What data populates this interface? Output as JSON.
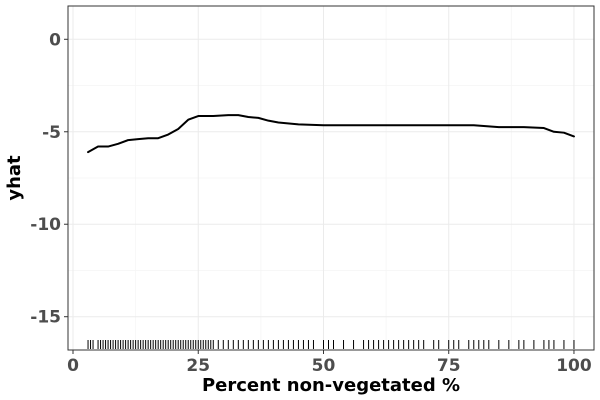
{
  "chart_data": {
    "type": "line",
    "title": "",
    "xlabel": "Percent non-vegetated %",
    "ylabel": "yhat",
    "xlim": [
      -1,
      104
    ],
    "ylim": [
      -16.8,
      1.8
    ],
    "x_ticks": [
      0,
      25,
      50,
      75,
      100
    ],
    "y_ticks": [
      0,
      -5,
      -10,
      -15
    ],
    "grid": true,
    "series": [
      {
        "x": [
          3,
          5,
          7,
          9,
          11,
          13,
          15,
          17,
          19,
          21,
          23,
          25,
          28,
          31,
          33,
          35,
          37,
          39,
          41,
          45,
          50,
          55,
          60,
          65,
          70,
          75,
          80,
          85,
          90,
          94,
          96,
          98,
          100
        ],
        "values": [
          -6.1,
          -5.8,
          -5.8,
          -5.65,
          -5.45,
          -5.4,
          -5.35,
          -5.35,
          -5.15,
          -4.85,
          -4.35,
          -4.15,
          -4.15,
          -4.1,
          -4.1,
          -4.2,
          -4.25,
          -4.4,
          -4.5,
          -4.6,
          -4.65,
          -4.65,
          -4.65,
          -4.65,
          -4.65,
          -4.65,
          -4.65,
          -4.75,
          -4.75,
          -4.8,
          -5.0,
          -5.05,
          -5.25
        ]
      }
    ],
    "rug": [
      3,
      3.5,
      4,
      5,
      5.5,
      6,
      6.5,
      7,
      7.5,
      8,
      8.5,
      9,
      9.5,
      10,
      10.5,
      11,
      11.5,
      12,
      12.5,
      13,
      13.5,
      14,
      14.5,
      15,
      15.5,
      16,
      16.5,
      17,
      17.5,
      18,
      18.5,
      19,
      19.5,
      20,
      20.5,
      21,
      21.5,
      22,
      22.5,
      23,
      23.5,
      24,
      24.5,
      25,
      25.5,
      26,
      26.5,
      27,
      27.5,
      28,
      29,
      30,
      31,
      32,
      33,
      34,
      35,
      36,
      37,
      38,
      39,
      40,
      41,
      42,
      43,
      44,
      45,
      46,
      47,
      48,
      50,
      51,
      52,
      54,
      56,
      58,
      59,
      60,
      61,
      62,
      63,
      64,
      65,
      66,
      67,
      68,
      69,
      70,
      72,
      73,
      75,
      76,
      77,
      79,
      80,
      81,
      82,
      83,
      85,
      87,
      89,
      90,
      92,
      94,
      95,
      96,
      98,
      100
    ]
  }
}
